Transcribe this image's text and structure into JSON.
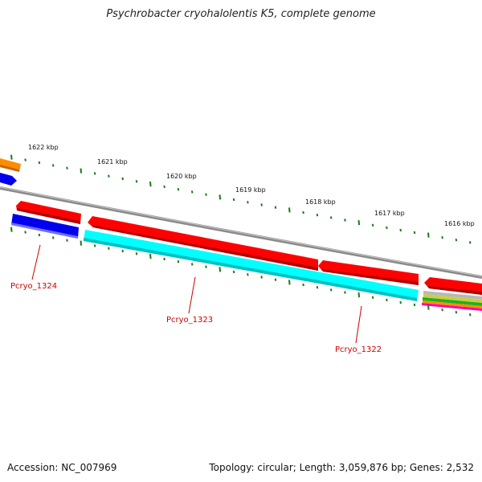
{
  "title": "Psychrobacter cryohalolentis K5, complete genome",
  "footer": {
    "accession": "Accession: NC_007969",
    "summary": "Topology: circular; Length: 3,059,876 bp; Genes: 2,532"
  },
  "tick_labels": [
    "1622 kbp",
    "1621 kbp",
    "1620 kbp",
    "1619 kbp",
    "1618 kbp",
    "1617 kbp",
    "1616 kbp"
  ],
  "gene_labels": [
    "Pcryo_1324",
    "Pcryo_1323",
    "Pcryo_1322"
  ],
  "colors": {
    "backbone": "#8a8a8a",
    "tick": "#1a7a1a",
    "forward_cds": "#ff0000",
    "reverse_cds_blue": "#0000ee",
    "reverse_cds_cyan": "#00ffff",
    "orange_feature": "#ff8c00",
    "label": "#cc0000"
  }
}
